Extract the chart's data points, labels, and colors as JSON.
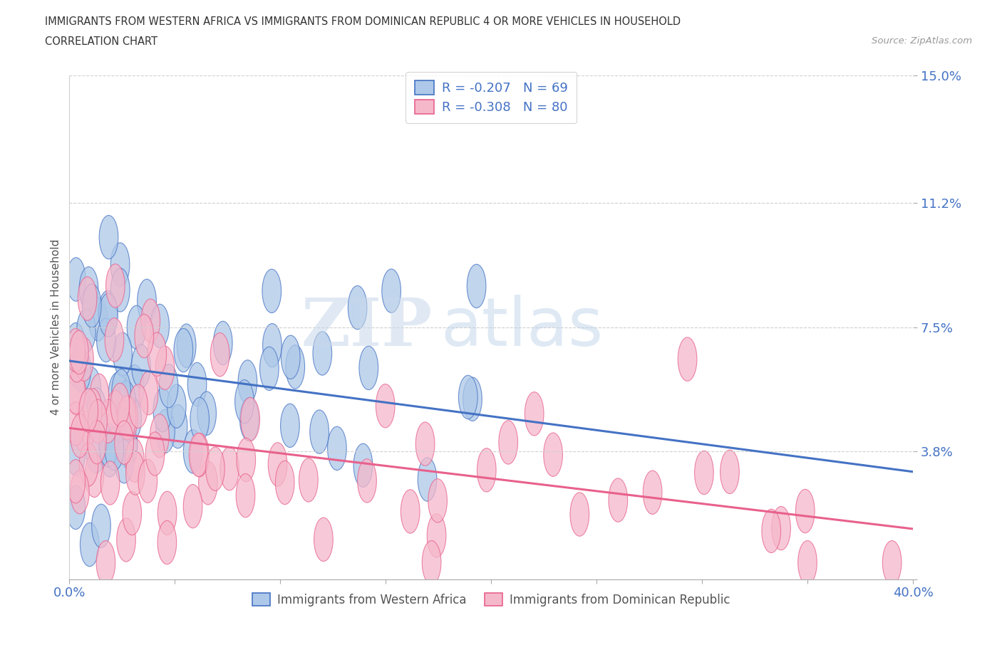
{
  "title_line1": "IMMIGRANTS FROM WESTERN AFRICA VS IMMIGRANTS FROM DOMINICAN REPUBLIC 4 OR MORE VEHICLES IN HOUSEHOLD",
  "title_line2": "CORRELATION CHART",
  "source_text": "Source: ZipAtlas.com",
  "ylabel_label": "4 or more Vehicles in Household",
  "legend_label1": "Immigrants from Western Africa",
  "legend_label2": "Immigrants from Dominican Republic",
  "r1": -0.207,
  "n1": 69,
  "r2": -0.308,
  "n2": 80,
  "color1": "#adc8e8",
  "color2": "#f5b8cb",
  "line_color1": "#4472c4",
  "line_color2": "#e8618c",
  "grid_color": "#d0d0d0",
  "watermark_text": "ZIPatlas",
  "xlim": [
    0.0,
    40.0
  ],
  "ylim": [
    0.0,
    15.0
  ],
  "x_ticks": [
    0.0,
    5.0,
    10.0,
    15.0,
    20.0,
    25.0,
    30.0,
    35.0,
    40.0
  ],
  "y_ticks": [
    0.0,
    3.8,
    7.5,
    11.2,
    15.0
  ],
  "blue_line_y0": 6.5,
  "blue_line_y1": 3.2,
  "pink_line_y0": 4.5,
  "pink_line_y1": 1.5
}
